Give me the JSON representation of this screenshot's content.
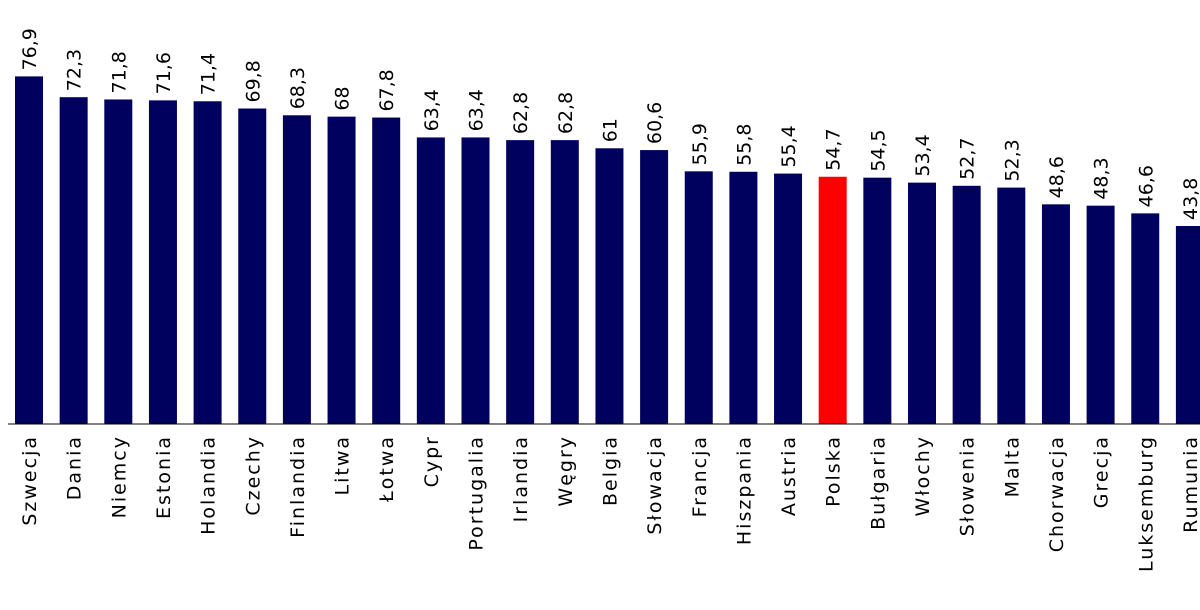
{
  "chart_data": {
    "type": "bar",
    "categories": [
      "Szwecja",
      "Dania",
      "Niemcy",
      "Estonia",
      "Holandia",
      "Czechy",
      "Finlandia",
      "Litwa",
      "Łotwa",
      "Cypr",
      "Portugalia",
      "Irlandia",
      "Węgry",
      "Belgia",
      "Słowacja",
      "Francja",
      "Hiszpania",
      "Austria",
      "Polska",
      "Bułgaria",
      "Włochy",
      "Słowenia",
      "Malta",
      "Chorwacja",
      "Grecja",
      "Luksemburg",
      "Rumunia"
    ],
    "values": [
      76.9,
      72.3,
      71.8,
      71.6,
      71.4,
      69.8,
      68.3,
      68,
      67.8,
      63.4,
      63.4,
      62.8,
      62.8,
      61,
      60.6,
      55.9,
      55.8,
      55.4,
      54.7,
      54.5,
      53.4,
      52.7,
      52.3,
      48.6,
      48.3,
      46.6,
      43.8
    ],
    "data_labels": [
      "76,9",
      "72,3",
      "71,8",
      "71,6",
      "71,4",
      "69,8",
      "68,3",
      "68",
      "67,8",
      "63,4",
      "63,4",
      "62,8",
      "62,8",
      "61",
      "60,6",
      "55,9",
      "55,8",
      "55,4",
      "54,7",
      "54,5",
      "53,4",
      "52,7",
      "52,3",
      "48,6",
      "48,3",
      "46,6",
      "43,8"
    ],
    "highlight_category": "Polska",
    "title": "",
    "xlabel": "",
    "ylabel": "",
    "ylim": [
      0,
      80
    ],
    "grid": false,
    "legend": "none",
    "colors": {
      "bar": "#00005e",
      "highlight": "#ff0000",
      "axis": "#000000",
      "text": "#000000"
    }
  }
}
